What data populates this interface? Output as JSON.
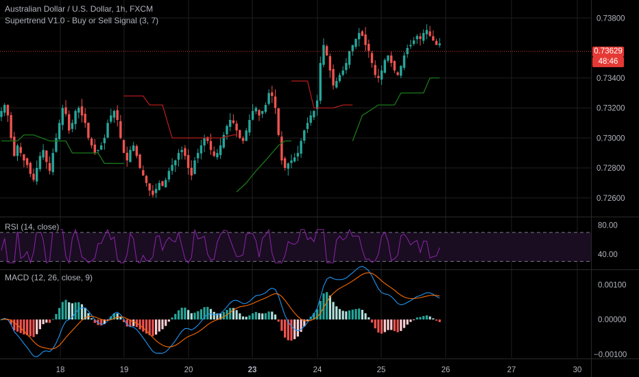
{
  "header": {
    "symbol_line": "Australian Dollar / U.S. Dollar, 1h, FXCM",
    "indicator_line": "Supertrend V1.0 - Buy or Sell Signal (3, 7)"
  },
  "last_price": {
    "value": "0.73629",
    "countdown": "48:46",
    "color": "#e53935"
  },
  "colors": {
    "background": "#000000",
    "grid": "#1f1f1f",
    "up": "#26a69a",
    "down": "#ef5350",
    "supertrend_up": "#1b7a1b",
    "supertrend_down": "#b71c1c",
    "rsi": "#8e24aa",
    "rsi_band": "#1a0d22",
    "macd": "#2196f3",
    "signal": "#ff6d00"
  },
  "price_axis": {
    "ticks": [
      "0.73800",
      "0.73400",
      "0.73200",
      "0.73000",
      "0.72800",
      "0.72600"
    ]
  },
  "rsi_panel": {
    "label": "RSI (14, close)",
    "ticks": [
      "80.00",
      "40.00"
    ],
    "levels": [
      70,
      30
    ]
  },
  "macd_panel": {
    "label": "MACD (12, 26, close, 9)",
    "ticks": [
      "0.00100",
      "0.00000",
      "−0.00100"
    ]
  },
  "time_axis": {
    "labels": [
      {
        "text": "18",
        "bold": false
      },
      {
        "text": "19",
        "bold": false
      },
      {
        "text": "20",
        "bold": false
      },
      {
        "text": "23",
        "bold": true
      },
      {
        "text": "24",
        "bold": false
      },
      {
        "text": "25",
        "bold": false
      },
      {
        "text": "26",
        "bold": false
      },
      {
        "text": "27",
        "bold": false
      },
      {
        "text": "30",
        "bold": false
      }
    ]
  },
  "chart_data": {
    "type": "candlestick",
    "title": "Australian Dollar / U.S. Dollar, 1h, FXCM",
    "ylim": [
      0.7248,
      0.7392
    ],
    "price_series": [
      0.7318,
      0.7322,
      0.7315,
      0.73,
      0.7288,
      0.7295,
      0.729,
      0.7285,
      0.7282,
      0.7276,
      0.7272,
      0.728,
      0.7288,
      0.7292,
      0.7284,
      0.7278,
      0.729,
      0.73,
      0.731,
      0.732,
      0.7316,
      0.7305,
      0.731,
      0.7318,
      0.732,
      0.7315,
      0.731,
      0.73,
      0.7295,
      0.729,
      0.7292,
      0.7295,
      0.73,
      0.731,
      0.7315,
      0.7318,
      0.7312,
      0.73,
      0.729,
      0.7285,
      0.7292,
      0.7295,
      0.7288,
      0.728,
      0.7275,
      0.727,
      0.7265,
      0.7262,
      0.7266,
      0.727,
      0.7268,
      0.7272,
      0.7278,
      0.7282,
      0.7285,
      0.729,
      0.7292,
      0.7288,
      0.728,
      0.7275,
      0.7285,
      0.729,
      0.7295,
      0.73,
      0.7298,
      0.7292,
      0.7288,
      0.729,
      0.7295,
      0.7302,
      0.7308,
      0.7312,
      0.731,
      0.7305,
      0.73,
      0.7298,
      0.7305,
      0.7312,
      0.7318,
      0.732,
      0.7315,
      0.7318,
      0.7322,
      0.733,
      0.7328,
      0.732,
      0.7302,
      0.7285,
      0.728,
      0.7283,
      0.7285,
      0.7287,
      0.729,
      0.7298,
      0.7305,
      0.731,
      0.7315,
      0.7318,
      0.7325,
      0.735,
      0.7362,
      0.7355,
      0.7345,
      0.7335,
      0.7338,
      0.7342,
      0.7345,
      0.735,
      0.7358,
      0.7362,
      0.7366,
      0.737,
      0.7368,
      0.7362,
      0.7358,
      0.735,
      0.7342,
      0.734,
      0.7345,
      0.7352,
      0.7355,
      0.735,
      0.7345,
      0.7342,
      0.7348,
      0.7355,
      0.736,
      0.7362,
      0.7365,
      0.7368,
      0.7366,
      0.737,
      0.7372,
      0.7368,
      0.7365,
      0.7362,
      0.7363
    ],
    "supertrend": {
      "segments": [
        {
          "trend": "up",
          "points": [
            [
              0,
              0.7298
            ],
            [
              5,
              0.7298
            ],
            [
              7,
              0.7302
            ],
            [
              10,
              0.7302
            ],
            [
              15,
              0.7298
            ],
            [
              20,
              0.7298
            ],
            [
              22,
              0.729
            ],
            [
              30,
              0.729
            ],
            [
              32,
              0.7283
            ],
            [
              38,
              0.7283
            ]
          ]
        },
        {
          "trend": "down",
          "points": [
            [
              38,
              0.7328
            ],
            [
              44,
              0.7328
            ],
            [
              46,
              0.7322
            ],
            [
              50,
              0.7322
            ],
            [
              53,
              0.73
            ],
            [
              68,
              0.73
            ],
            [
              72,
              0.7302
            ],
            [
              73,
              0.7302
            ]
          ]
        },
        {
          "trend": "up",
          "points": [
            [
              73,
              0.7264
            ],
            [
              76,
              0.727
            ],
            [
              79,
              0.7278
            ],
            [
              82,
              0.7285
            ],
            [
              84,
              0.729
            ],
            [
              86,
              0.7295
            ],
            [
              88,
              0.7298
            ],
            [
              90,
              0.7298
            ]
          ]
        },
        {
          "trend": "down",
          "points": [
            [
              90,
              0.7338
            ],
            [
              95,
              0.7338
            ],
            [
              97,
              0.732
            ],
            [
              103,
              0.732
            ],
            [
              106,
              0.7322
            ],
            [
              109,
              0.7322
            ]
          ]
        },
        {
          "trend": "up",
          "points": [
            [
              109,
              0.7298
            ],
            [
              112,
              0.7315
            ],
            [
              117,
              0.7322
            ],
            [
              122,
              0.7322
            ],
            [
              124,
              0.733
            ],
            [
              131,
              0.733
            ],
            [
              133,
              0.734
            ],
            [
              136,
              0.734
            ]
          ]
        }
      ]
    },
    "rsi": {
      "ylim": [
        20,
        90
      ],
      "levels": [
        70,
        30
      ]
    },
    "macd": {
      "ylim": [
        -0.0011,
        0.0014
      ]
    }
  }
}
